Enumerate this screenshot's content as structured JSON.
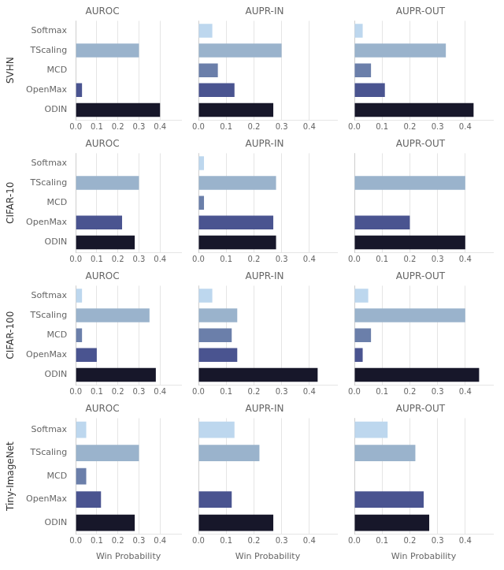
{
  "chart_data": [
    {
      "type": "bar",
      "orientation": "horizontal",
      "title": "AUROC",
      "annotations": [
        "SVHN"
      ],
      "categories": [
        "Softmax",
        "TScaling",
        "MCD",
        "OpenMax",
        "ODIN"
      ],
      "values": [
        0.0,
        0.3,
        0.0,
        0.03,
        0.4
      ],
      "colors": [
        "#bdd7ee",
        "#9ab3cc",
        "#6b7faa",
        "#4a5490",
        "#17172a"
      ],
      "xlim": [
        0,
        0.5
      ],
      "xticks": [
        {
          "value": 0.0,
          "label": "0.0"
        },
        0.1,
        0.2,
        0.3,
        0.4
      ],
      "grid": true
    },
    {
      "type": "bar",
      "orientation": "horizontal",
      "title": "AUPR-IN",
      "categories": [
        "Softmax",
        "TScaling",
        "MCD",
        "OpenMax",
        "ODIN"
      ],
      "values": [
        0.05,
        0.3,
        0.07,
        0.13,
        0.27
      ],
      "colors": [
        "#bdd7ee",
        "#9ab3cc",
        "#6b7faa",
        "#4a5490",
        "#17172a"
      ],
      "xlim": [
        0,
        0.5
      ],
      "xticks": [
        {
          "value": 0.0,
          "label": "0.0"
        },
        0.1,
        0.2,
        0.3,
        0.4
      ],
      "grid": true,
      "tick_labels": "x"
    },
    {
      "type": "bar",
      "orientation": "horizontal",
      "title": "AUPR-OUT",
      "categories": [
        "Softmax",
        "TScaling",
        "MCD",
        "OpenMax",
        "ODIN"
      ],
      "values": [
        0.03,
        0.33,
        0.06,
        0.11,
        0.43
      ],
      "colors": [
        "#bdd7ee",
        "#9ab3cc",
        "#6b7faa",
        "#4a5490",
        "#17172a"
      ],
      "xlim": [
        0,
        0.5
      ],
      "xticks": [
        {
          "value": 0.0,
          "label": "0.0"
        },
        0.1,
        0.2,
        0.3,
        0.4
      ],
      "grid": true,
      "tick_labels": "x"
    },
    {
      "type": "bar",
      "orientation": "horizontal",
      "title": "AUROC",
      "annotations": [
        "CIFAR-10"
      ],
      "categories": [
        "Softmax",
        "TScaling",
        "MCD",
        "OpenMax",
        "ODIN"
      ],
      "values": [
        0.0,
        0.3,
        0.0,
        0.22,
        0.28
      ],
      "colors": [
        "#bdd7ee",
        "#9ab3cc",
        "#6b7faa",
        "#4a5490",
        "#17172a"
      ],
      "xlim": [
        0,
        0.5
      ],
      "xticks": [
        {
          "value": 0.0,
          "label": "0.0"
        },
        0.1,
        0.2,
        0.3,
        0.4
      ],
      "grid": true
    },
    {
      "type": "bar",
      "orientation": "horizontal",
      "title": "AUPR-IN",
      "categories": [
        "Softmax",
        "TScaling",
        "MCD",
        "OpenMax",
        "ODIN"
      ],
      "values": [
        0.02,
        0.28,
        0.02,
        0.27,
        0.28
      ],
      "colors": [
        "#bdd7ee",
        "#9ab3cc",
        "#6b7faa",
        "#4a5490",
        "#17172a"
      ],
      "xlim": [
        0,
        0.5
      ],
      "xticks": [
        {
          "value": 0.0,
          "label": "0.0"
        },
        0.1,
        0.2,
        0.3,
        0.4
      ],
      "grid": true,
      "tick_labels": "x"
    },
    {
      "type": "bar",
      "orientation": "horizontal",
      "title": "AUPR-OUT",
      "categories": [
        "Softmax",
        "TScaling",
        "MCD",
        "OpenMax",
        "ODIN"
      ],
      "values": [
        0.0,
        0.4,
        0.0,
        0.2,
        0.4
      ],
      "colors": [
        "#bdd7ee",
        "#9ab3cc",
        "#6b7faa",
        "#4a5490",
        "#17172a"
      ],
      "xlim": [
        0,
        0.5
      ],
      "xticks": [
        {
          "value": 0.0,
          "label": "0.0"
        },
        0.1,
        0.2,
        0.3,
        0.4
      ],
      "grid": true,
      "tick_labels": "x"
    },
    {
      "type": "bar",
      "orientation": "horizontal",
      "title": "AUROC",
      "annotations": [
        "CIFAR-100"
      ],
      "categories": [
        "Softmax",
        "TScaling",
        "MCD",
        "OpenMax",
        "ODIN"
      ],
      "values": [
        0.03,
        0.35,
        0.03,
        0.1,
        0.38
      ],
      "colors": [
        "#bdd7ee",
        "#9ab3cc",
        "#6b7faa",
        "#4a5490",
        "#17172a"
      ],
      "xlim": [
        0,
        0.5
      ],
      "xticks": [
        {
          "value": 0.0,
          "label": "0.0"
        },
        0.1,
        0.2,
        0.3,
        0.4
      ],
      "grid": true
    },
    {
      "type": "bar",
      "orientation": "horizontal",
      "title": "AUPR-IN",
      "categories": [
        "Softmax",
        "TScaling",
        "MCD",
        "OpenMax",
        "ODIN"
      ],
      "values": [
        0.05,
        0.14,
        0.12,
        0.14,
        0.43
      ],
      "colors": [
        "#bdd7ee",
        "#9ab3cc",
        "#6b7faa",
        "#4a5490",
        "#17172a"
      ],
      "xlim": [
        0,
        0.5
      ],
      "xticks": [
        {
          "value": 0.0,
          "label": "0.0"
        },
        0.1,
        0.2,
        0.3,
        0.4
      ],
      "grid": true,
      "tick_labels": "x"
    },
    {
      "type": "bar",
      "orientation": "horizontal",
      "title": "AUPR-OUT",
      "categories": [
        "Softmax",
        "TScaling",
        "MCD",
        "OpenMax",
        "ODIN"
      ],
      "values": [
        0.05,
        0.4,
        0.06,
        0.03,
        0.45
      ],
      "colors": [
        "#bdd7ee",
        "#9ab3cc",
        "#6b7faa",
        "#4a5490",
        "#17172a"
      ],
      "xlim": [
        0,
        0.5
      ],
      "xticks": [
        {
          "value": 0.0,
          "label": "0.0"
        },
        0.1,
        0.2,
        0.3,
        0.4
      ],
      "grid": true,
      "tick_labels": "x"
    },
    {
      "type": "bar",
      "orientation": "horizontal",
      "title": "AUROC",
      "annotations": [
        "Tiny-ImageNet"
      ],
      "xlabel": "Win Probability",
      "categories": [
        "Softmax",
        "TScaling",
        "MCD",
        "OpenMax",
        "ODIN"
      ],
      "values": [
        0.05,
        0.3,
        0.05,
        0.12,
        0.28
      ],
      "colors": [
        "#bdd7ee",
        "#9ab3cc",
        "#6b7faa",
        "#4a5490",
        "#17172a"
      ],
      "xlim": [
        0,
        0.5
      ],
      "xticks": [
        {
          "value": 0.0,
          "label": "0.0"
        },
        0.1,
        0.2,
        0.3,
        0.4
      ],
      "grid": true
    },
    {
      "type": "bar",
      "orientation": "horizontal",
      "title": "AUPR-IN",
      "xlabel": "Win Probability",
      "categories": [
        "Softmax",
        "TScaling",
        "MCD",
        "OpenMax",
        "ODIN"
      ],
      "values": [
        0.13,
        0.22,
        0.0,
        0.12,
        0.27
      ],
      "colors": [
        "#bdd7ee",
        "#9ab3cc",
        "#6b7faa",
        "#4a5490",
        "#17172a"
      ],
      "xlim": [
        0,
        0.5
      ],
      "xticks": [
        {
          "value": 0.0,
          "label": "0.0"
        },
        0.1,
        0.2,
        0.3,
        0.4
      ],
      "grid": true,
      "tick_labels": "x"
    },
    {
      "type": "bar",
      "orientation": "horizontal",
      "title": "AUPR-OUT",
      "xlabel": "Win Probability",
      "categories": [
        "Softmax",
        "TScaling",
        "MCD",
        "OpenMax",
        "ODIN"
      ],
      "values": [
        0.12,
        0.22,
        0.0,
        0.25,
        0.27
      ],
      "colors": [
        "#bdd7ee",
        "#9ab3cc",
        "#6b7faa",
        "#4a5490",
        "#17172a"
      ],
      "xlim": [
        0,
        0.5
      ],
      "xticks": [
        {
          "value": 0.0,
          "label": "0.0"
        },
        0.1,
        0.2,
        0.3,
        0.4
      ],
      "grid": true,
      "tick_labels": "x"
    }
  ]
}
